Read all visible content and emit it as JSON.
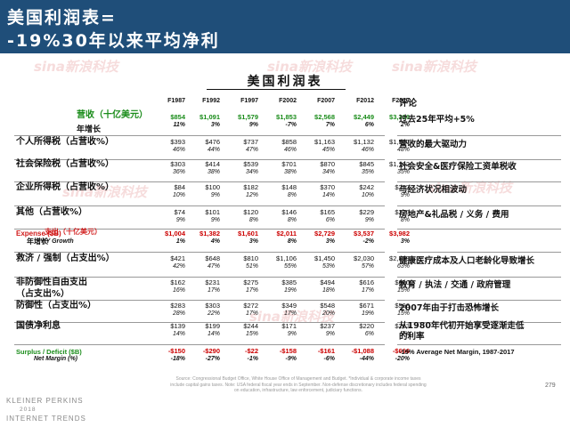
{
  "header": {
    "line1": "美国利润表=",
    "line2": "-19%30年以来平均净利"
  },
  "watermark": {
    "text": "sina新浪科技"
  },
  "table": {
    "title": "美国利润表",
    "columns": [
      "F1987",
      "F1992",
      "F1997",
      "F2002",
      "F2007",
      "F2012",
      "F2017"
    ],
    "comment_header": "评论",
    "rows": [
      {
        "label": "营收（十亿美元）",
        "sublabel": "年增长",
        "values": [
          "$854",
          "$1,091",
          "$1,579",
          "$1,853",
          "$2,568",
          "$2,449",
          "$3,316"
        ],
        "growth": [
          "11%",
          "3%",
          "9%",
          "-7%",
          "7%",
          "6%",
          "2%"
        ],
        "comment": "过去25年平均+5%"
      },
      {
        "label": "个人所得税（占营收%）",
        "values": [
          "$393",
          "$476",
          "$737",
          "$858",
          "$1,163",
          "$1,132",
          "$1,587"
        ],
        "growth": [
          "46%",
          "44%",
          "47%",
          "46%",
          "45%",
          "46%",
          "48%"
        ],
        "comment": "营收的最大驱动力"
      },
      {
        "label": "社会保险税（占营收%）",
        "values": [
          "$303",
          "$414",
          "$539",
          "$701",
          "$870",
          "$845",
          "$1,162"
        ],
        "growth": [
          "36%",
          "38%",
          "34%",
          "38%",
          "34%",
          "35%",
          "35%"
        ],
        "comment": "社会安全&医疗保险工资单税收"
      },
      {
        "label": "企业所得税（占营收%）",
        "values": [
          "$84",
          "$100",
          "$182",
          "$148",
          "$370",
          "$242",
          "$297"
        ],
        "growth": [
          "10%",
          "9%",
          "12%",
          "8%",
          "14%",
          "10%",
          "9%"
        ],
        "comment": "与经济状况相波动"
      },
      {
        "label": "其他（占营收%）",
        "values": [
          "$74",
          "$101",
          "$120",
          "$146",
          "$165",
          "$229",
          "$270"
        ],
        "growth": [
          "9%",
          "9%",
          "8%",
          "8%",
          "6%",
          "9%",
          "8%"
        ],
        "comment": "房地产&礼品税 / 义务 / 费用"
      },
      {
        "label": "Expense ($B)",
        "label_overlay": "支出（十亿美元）",
        "sublabel": "Y/Y Growth",
        "sublabel_overlay": "年增长",
        "values": [
          "$1,004",
          "$1,382",
          "$1,601",
          "$2,011",
          "$2,729",
          "$3,537",
          "$3,982"
        ],
        "growth": [
          "1%",
          "4%",
          "3%",
          "8%",
          "3%",
          "-2%",
          "3%"
        ],
        "comment": ""
      },
      {
        "label": "救济 / 强制（占支出%）",
        "values": [
          "$421",
          "$648",
          "$810",
          "$1,106",
          "$1,450",
          "$2,030",
          "$2,519"
        ],
        "growth": [
          "42%",
          "47%",
          "51%",
          "55%",
          "53%",
          "57%",
          "63%"
        ],
        "comment": "健康医疗成本及人口老龄化导致增长"
      },
      {
        "label": "非防御性自由支出",
        "label2": "（占支出%）",
        "values": [
          "$162",
          "$231",
          "$275",
          "$385",
          "$494",
          "$616",
          "$610"
        ],
        "growth": [
          "16%",
          "17%",
          "17%",
          "19%",
          "18%",
          "17%",
          "15%"
        ],
        "comment": "教育 / 执法 / 交通 / 政府管理"
      },
      {
        "label": "防御性（占支出%）",
        "values": [
          "$283",
          "$303",
          "$272",
          "$349",
          "$548",
          "$671",
          "$590"
        ],
        "growth": [
          "28%",
          "22%",
          "17%",
          "17%",
          "20%",
          "19%",
          "15%"
        ],
        "comment": "2007年由于打击恐怖增长"
      },
      {
        "label": "国债净利息",
        "values": [
          "$139",
          "$199",
          "$244",
          "$171",
          "$237",
          "$220",
          "$263"
        ],
        "growth": [
          "14%",
          "14%",
          "15%",
          "9%",
          "9%",
          "6%",
          "7%"
        ],
        "comment": "从1980年代初开始享受逐渐走低",
        "comment2": "的利率"
      },
      {
        "label": "Surplus / Deficit ($B)",
        "sublabel": "Net Margin (%)",
        "values": [
          "-$150",
          "-$290",
          "-$22",
          "-$158",
          "-$161",
          "-$1,088",
          "-$666"
        ],
        "growth": [
          "-18%",
          "-27%",
          "-1%",
          "-9%",
          "-6%",
          "-44%",
          "-20%"
        ],
        "comment": "-19% Average Net Margin, 1987-2017"
      }
    ]
  },
  "footer": {
    "source": "Source: Congressional Budget Office, White House Office of Management and Budget. *Individual & corporate income taxes include capital gains taxes. Note: USA federal fiscal year ends in September. Non-defense discretionary includes federal spending on education, infrastructure, law enforcement, judiciary functions.",
    "page": "279",
    "brand1": "KLEINER PERKINS",
    "brand2": "2018",
    "brand3": "INTERNET TRENDS"
  },
  "colors": {
    "header_bg": "#1f4e79",
    "green": "#1a8c1a",
    "red": "#cc0000"
  }
}
